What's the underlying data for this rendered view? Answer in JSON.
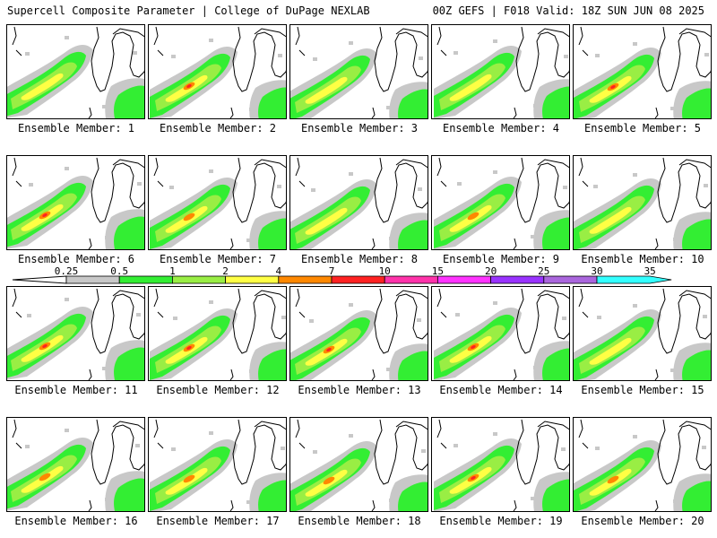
{
  "header": {
    "title": "Supercell Composite Parameter | College of DuPage NEXLAB",
    "subtitle": "00Z GEFS | F018 Valid: 18Z SUN JUN 08 2025"
  },
  "colorbar": {
    "levels": [
      "0.25",
      "0.5",
      "1",
      "2",
      "4",
      "7",
      "10",
      "15",
      "20",
      "25",
      "30",
      "35"
    ],
    "colors": [
      "#c8c8c8",
      "#33ee33",
      "#99ee44",
      "#ffff44",
      "#ff8800",
      "#ff2222",
      "#ff33aa",
      "#ff33ff",
      "#9933ff",
      "#aa66dd",
      "#33ffff"
    ]
  },
  "members": [
    {
      "label": "Ensemble Member: 1",
      "intensity": 2
    },
    {
      "label": "Ensemble Member: 2",
      "intensity": 4
    },
    {
      "label": "Ensemble Member: 3",
      "intensity": 2
    },
    {
      "label": "Ensemble Member: 4",
      "intensity": 2
    },
    {
      "label": "Ensemble Member: 5",
      "intensity": 4
    },
    {
      "label": "Ensemble Member: 6",
      "intensity": 4
    },
    {
      "label": "Ensemble Member: 7",
      "intensity": 3
    },
    {
      "label": "Ensemble Member: 8",
      "intensity": 2
    },
    {
      "label": "Ensemble Member: 9",
      "intensity": 3
    },
    {
      "label": "Ensemble Member: 10",
      "intensity": 2
    },
    {
      "label": "Ensemble Member: 11",
      "intensity": 4
    },
    {
      "label": "Ensemble Member: 12",
      "intensity": 4
    },
    {
      "label": "Ensemble Member: 13",
      "intensity": 4
    },
    {
      "label": "Ensemble Member: 14",
      "intensity": 4
    },
    {
      "label": "Ensemble Member: 15",
      "intensity": 2
    },
    {
      "label": "Ensemble Member: 16",
      "intensity": 3
    },
    {
      "label": "Ensemble Member: 17",
      "intensity": 3
    },
    {
      "label": "Ensemble Member: 18",
      "intensity": 3
    },
    {
      "label": "Ensemble Member: 19",
      "intensity": 4
    },
    {
      "label": "Ensemble Member: 20",
      "intensity": 3
    }
  ]
}
